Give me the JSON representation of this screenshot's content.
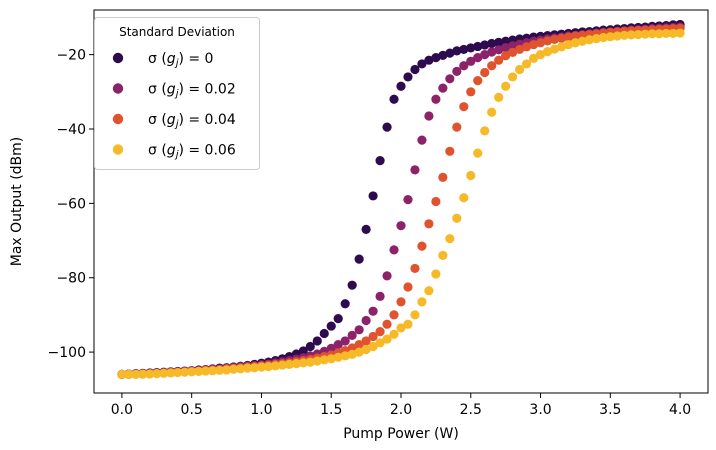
{
  "chart_data": {
    "type": "scatter",
    "title": "",
    "xlabel": "Pump Power (W)",
    "ylabel": "Max Output (dBm)",
    "xlim": [
      -0.2,
      4.2
    ],
    "ylim": [
      -111,
      -8
    ],
    "xticks": [
      0.0,
      0.5,
      1.0,
      1.5,
      2.0,
      2.5,
      3.0,
      3.5,
      4.0
    ],
    "xtick_labels": [
      "0.0",
      "0.5",
      "1.0",
      "1.5",
      "2.0",
      "2.5",
      "3.0",
      "3.5",
      "4.0"
    ],
    "yticks": [
      -100,
      -80,
      -60,
      -40,
      -20
    ],
    "ytick_labels": [
      "−100",
      "−80",
      "−60",
      "−40",
      "−20"
    ],
    "grid": false,
    "legend": {
      "title": "Standard Deviation",
      "position": "upper-left"
    },
    "x": [
      0.0,
      0.05,
      0.1,
      0.15,
      0.2,
      0.25,
      0.3,
      0.35,
      0.4,
      0.45,
      0.5,
      0.55,
      0.6,
      0.65,
      0.7,
      0.75,
      0.8,
      0.85,
      0.9,
      0.95,
      1.0,
      1.05,
      1.1,
      1.15,
      1.2,
      1.25,
      1.3,
      1.35,
      1.4,
      1.45,
      1.5,
      1.55,
      1.6,
      1.65,
      1.7,
      1.75,
      1.8,
      1.85,
      1.9,
      1.95,
      2.0,
      2.05,
      2.1,
      2.15,
      2.2,
      2.25,
      2.3,
      2.35,
      2.4,
      2.45,
      2.5,
      2.55,
      2.6,
      2.65,
      2.7,
      2.75,
      2.8,
      2.85,
      2.9,
      2.95,
      3.0,
      3.05,
      3.1,
      3.15,
      3.2,
      3.25,
      3.3,
      3.35,
      3.4,
      3.45,
      3.5,
      3.55,
      3.6,
      3.65,
      3.7,
      3.75,
      3.8,
      3.85,
      3.9,
      3.95,
      4.0
    ],
    "series": [
      {
        "name": "σ (g_j) = 0",
        "color": "#2d0b4e",
        "values": [
          -106.0,
          -105.9,
          -105.8,
          -105.7,
          -105.6,
          -105.5,
          -105.4,
          -105.3,
          -105.2,
          -105.1,
          -105.0,
          -104.8,
          -104.7,
          -104.5,
          -104.3,
          -104.2,
          -104.0,
          -103.8,
          -103.6,
          -103.3,
          -103.0,
          -102.7,
          -102.3,
          -101.8,
          -101.2,
          -100.5,
          -99.7,
          -98.5,
          -97.0,
          -95.0,
          -93.0,
          -91.0,
          -87.0,
          -82.0,
          -75.0,
          -67.0,
          -58.0,
          -48.5,
          -39.5,
          -32.0,
          -28.5,
          -26.0,
          -24.0,
          -22.5,
          -21.5,
          -20.8,
          -20.2,
          -19.6,
          -19.0,
          -18.6,
          -18.2,
          -17.8,
          -17.4,
          -17.0,
          -16.7,
          -16.4,
          -16.1,
          -15.8,
          -15.6,
          -15.3,
          -15.1,
          -14.9,
          -14.7,
          -14.5,
          -14.3,
          -14.1,
          -13.9,
          -13.8,
          -13.6,
          -13.4,
          -13.3,
          -13.1,
          -13.0,
          -12.8,
          -12.7,
          -12.6,
          -12.4,
          -12.3,
          -12.2,
          -12.0,
          -11.9
        ]
      },
      {
        "name": "σ (g_j) = 0.02",
        "color": "#8c2369",
        "values": [
          -106.0,
          -105.9,
          -105.9,
          -105.8,
          -105.7,
          -105.6,
          -105.5,
          -105.4,
          -105.3,
          -105.2,
          -105.1,
          -104.9,
          -104.8,
          -104.6,
          -104.5,
          -104.3,
          -104.1,
          -103.9,
          -103.8,
          -103.6,
          -103.4,
          -103.2,
          -102.9,
          -102.6,
          -102.3,
          -101.9,
          -101.5,
          -101.0,
          -100.5,
          -99.8,
          -99.0,
          -98.0,
          -97.0,
          -95.5,
          -94.0,
          -91.5,
          -89.0,
          -85.0,
          -79.5,
          -72.5,
          -66.0,
          -59.0,
          -51.0,
          -43.0,
          -36.5,
          -32.0,
          -29.0,
          -26.5,
          -24.5,
          -23.0,
          -21.8,
          -20.8,
          -20.0,
          -19.3,
          -18.7,
          -18.1,
          -17.6,
          -17.2,
          -16.8,
          -16.4,
          -16.1,
          -15.8,
          -15.5,
          -15.3,
          -15.0,
          -14.8,
          -14.6,
          -14.4,
          -14.2,
          -14.0,
          -13.9,
          -13.7,
          -13.6,
          -13.4,
          -13.3,
          -13.2,
          -13.0,
          -12.9,
          -12.8,
          -12.7,
          -12.6
        ]
      },
      {
        "name": "σ (g_j) = 0.04",
        "color": "#e0532f",
        "values": [
          -106.0,
          -106.0,
          -105.9,
          -105.9,
          -105.8,
          -105.7,
          -105.6,
          -105.5,
          -105.4,
          -105.3,
          -105.2,
          -105.1,
          -104.9,
          -104.8,
          -104.7,
          -104.5,
          -104.4,
          -104.2,
          -104.0,
          -103.9,
          -103.7,
          -103.5,
          -103.3,
          -103.1,
          -102.9,
          -102.6,
          -102.3,
          -102.0,
          -101.6,
          -101.2,
          -100.8,
          -100.2,
          -99.6,
          -98.9,
          -98.0,
          -97.0,
          -95.8,
          -94.5,
          -92.5,
          -90.0,
          -86.5,
          -82.5,
          -77.5,
          -71.5,
          -65.5,
          -59.5,
          -53.0,
          -46.0,
          -39.5,
          -34.0,
          -30.0,
          -27.0,
          -24.8,
          -23.0,
          -21.5,
          -20.3,
          -19.4,
          -18.6,
          -17.9,
          -17.3,
          -16.8,
          -16.3,
          -15.9,
          -15.6,
          -15.3,
          -15.0,
          -14.8,
          -14.6,
          -14.4,
          -14.2,
          -14.0,
          -13.9,
          -13.7,
          -13.6,
          -13.5,
          -13.4,
          -13.3,
          -13.2,
          -13.1,
          -13.0,
          -12.9
        ]
      },
      {
        "name": "σ (g_j) = 0.06",
        "color": "#f6b928",
        "values": [
          -106.0,
          -106.0,
          -106.0,
          -105.9,
          -105.9,
          -105.8,
          -105.7,
          -105.6,
          -105.5,
          -105.4,
          -105.3,
          -105.2,
          -105.1,
          -105.0,
          -104.9,
          -104.8,
          -104.6,
          -104.5,
          -104.3,
          -104.2,
          -104.0,
          -103.9,
          -103.7,
          -103.5,
          -103.3,
          -103.1,
          -102.9,
          -102.7,
          -102.4,
          -102.1,
          -101.8,
          -101.4,
          -101.0,
          -100.6,
          -100.0,
          -99.3,
          -98.5,
          -97.5,
          -96.5,
          -95.2,
          -93.5,
          -92.5,
          -90.0,
          -86.5,
          -83.5,
          -79.0,
          -74.0,
          -69.5,
          -64.0,
          -58.5,
          -52.5,
          -46.5,
          -40.5,
          -35.5,
          -31.5,
          -28.5,
          -26.0,
          -24.0,
          -22.5,
          -21.0,
          -20.0,
          -19.2,
          -18.5,
          -17.9,
          -17.3,
          -16.8,
          -16.4,
          -16.0,
          -15.7,
          -15.4,
          -15.2,
          -15.0,
          -14.8,
          -14.7,
          -14.6,
          -14.5,
          -14.4,
          -14.4,
          -14.3,
          -14.3,
          -14.2
        ]
      }
    ]
  },
  "legend_items": [
    {
      "prefix": "σ (",
      "g": "g",
      "sub": "j",
      "suffix": ") = 0"
    },
    {
      "prefix": "σ (",
      "g": "g",
      "sub": "j",
      "suffix": ") = 0.02"
    },
    {
      "prefix": "σ (",
      "g": "g",
      "sub": "j",
      "suffix": ") = 0.04"
    },
    {
      "prefix": "σ (",
      "g": "g",
      "sub": "j",
      "suffix": ") = 0.06"
    }
  ]
}
